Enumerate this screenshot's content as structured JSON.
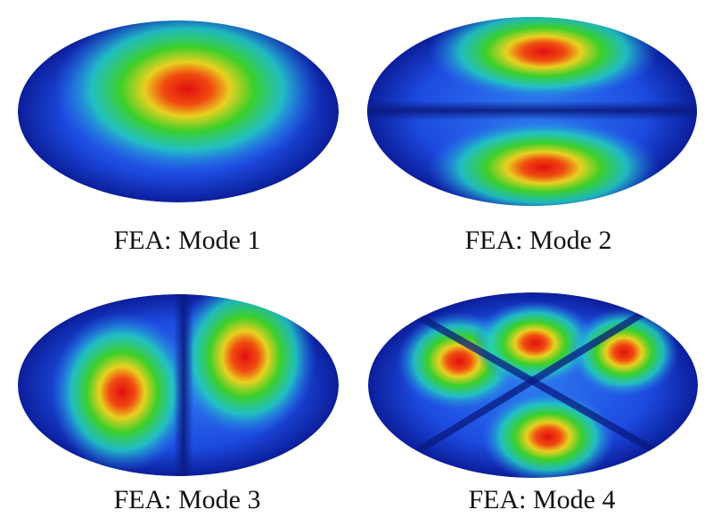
{
  "figures": [
    {
      "caption": "FEA: Mode 1"
    },
    {
      "caption": "FEA: Mode 2"
    },
    {
      "caption": "FEA: Mode 3"
    },
    {
      "caption": "FEA: Mode 4"
    }
  ]
}
